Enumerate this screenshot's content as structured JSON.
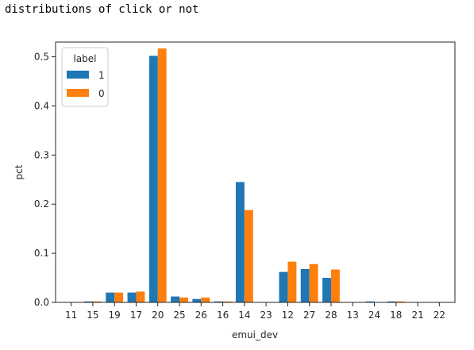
{
  "output_text": "distributions of click or not",
  "chart_data": {
    "type": "bar",
    "xlabel": "emui_dev",
    "ylabel": "pct",
    "ylim": [
      0,
      0.53
    ],
    "yticks": [
      "0.0",
      "0.1",
      "0.2",
      "0.3",
      "0.4",
      "0.5"
    ],
    "categories": [
      "11",
      "15",
      "19",
      "17",
      "20",
      "25",
      "26",
      "16",
      "14",
      "23",
      "12",
      "27",
      "28",
      "13",
      "24",
      "18",
      "21",
      "22"
    ],
    "legend": {
      "title": "label",
      "placement": "top-left"
    },
    "series": [
      {
        "name": "1",
        "color": "#1f77b4",
        "values": [
          0.0,
          0.002,
          0.02,
          0.02,
          0.502,
          0.012,
          0.007,
          0.002,
          0.245,
          0.0,
          0.062,
          0.068,
          0.05,
          0.0,
          0.002,
          0.002,
          0.0,
          0.0
        ]
      },
      {
        "name": "0",
        "color": "#ff7f0e",
        "values": [
          0.0,
          0.002,
          0.02,
          0.022,
          0.517,
          0.01,
          0.01,
          0.002,
          0.188,
          0.0,
          0.083,
          0.078,
          0.067,
          0.0,
          0.0,
          0.002,
          0.0,
          0.0
        ]
      }
    ]
  }
}
